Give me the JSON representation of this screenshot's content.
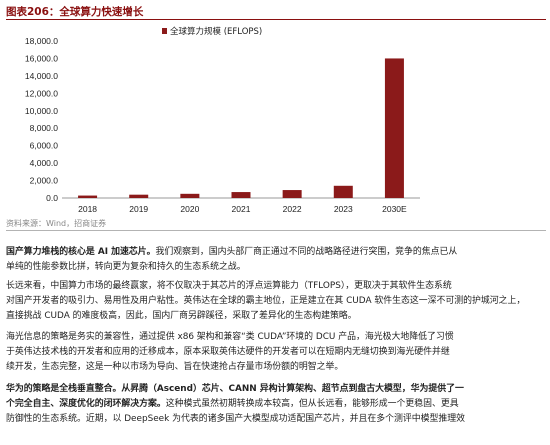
{
  "figure": {
    "title": "图表206：全球算力快速增长",
    "source": "资料来源：Wind，招商证券"
  },
  "chart_data": {
    "type": "bar",
    "categories": [
      "2018",
      "2019",
      "2020",
      "2021",
      "2022",
      "2023",
      "2030E"
    ],
    "series": [
      {
        "name": "全球算力规模 (EFLOPS)",
        "values": [
          280,
          380,
          480,
          680,
          910,
          1400,
          16000
        ]
      }
    ],
    "ylim": [
      0,
      18000
    ],
    "yticks": [
      "0.0",
      "2,000.0",
      "4,000.0",
      "6,000.0",
      "8,000.0",
      "10,000.0",
      "12,000.0",
      "14,000.0",
      "16,000.0",
      "18,000.0"
    ],
    "ytick_values": [
      0,
      2000,
      4000,
      6000,
      8000,
      10000,
      12000,
      14000,
      16000,
      18000
    ],
    "legend_position": "top-left",
    "grid": false,
    "color": "#8b1a1a"
  },
  "paragraphs": [
    {
      "lines": [
        [
          {
            "b": true,
            "t": "国产算力堆栈的核心是 AI 加速芯片。"
          },
          {
            "b": false,
            "t": "我们观察到，国内头部厂商正通过不同的战略路径进行突围，竞争的焦点已从"
          }
        ],
        [
          {
            "b": false,
            "t": "单纯的性能参数比拼，转向更为复杂和持久的生态系统之战。"
          }
        ]
      ]
    },
    {
      "lines": [
        [
          {
            "b": false,
            "t": "长远来看，中国算力市场的最终赢家，将不仅取决于其芯片的浮点运算能力（TFLOPS），更取决于其软件生态系统"
          }
        ],
        [
          {
            "b": false,
            "t": "对国产开发者的吸引力、易用性及用户粘性。英伟达在全球的霸主地位，正是建立在其 CUDA 软件生态这一深不可测的护城河之上，"
          }
        ],
        [
          {
            "b": false,
            "t": "直接挑战 CUDA 的难度极高，因此，国内厂商另辟蹊径，采取了差异化的生态构建策略。"
          }
        ]
      ]
    },
    {
      "lines": [
        [
          {
            "b": false,
            "t": "海光信息的策略是务实的兼容性，通过提供 x86 架构和兼容“类 CUDA”环境的 DCU 产品，海光极大地降低了习惯"
          }
        ],
        [
          {
            "b": false,
            "t": "于英伟达技术栈的开发者和应用的迁移成本，原本采取英伟达硬件的开发者可以在短期内无缝切换到海光硬件并继"
          }
        ],
        [
          {
            "b": false,
            "t": "续开发，生态完整，这是一种以市场为导向、旨在快速抢占存量市场份额的明智之举。"
          }
        ]
      ]
    },
    {
      "lines": [
        [
          {
            "b": true,
            "t": "华为的策略是全栈垂直整合。从昇腾（Ascend）芯片、CANN 异构计算架构、超节点到盘古大模型，华为提供了一"
          }
        ],
        [
          {
            "b": true,
            "t": "个完全自主、深度优化的闭环解决方案。"
          },
          {
            "b": false,
            "t": "这种模式虽然初期转换成本较高，但从长远看，能够形成一个更稳固、更具"
          }
        ],
        [
          {
            "b": false,
            "t": "防御性的生态系统。近期，以 DeepSeek 为代表的诸多国产大模型成功适配国产芯片，并且在多个测评中模型推理效"
          }
        ]
      ]
    }
  ]
}
